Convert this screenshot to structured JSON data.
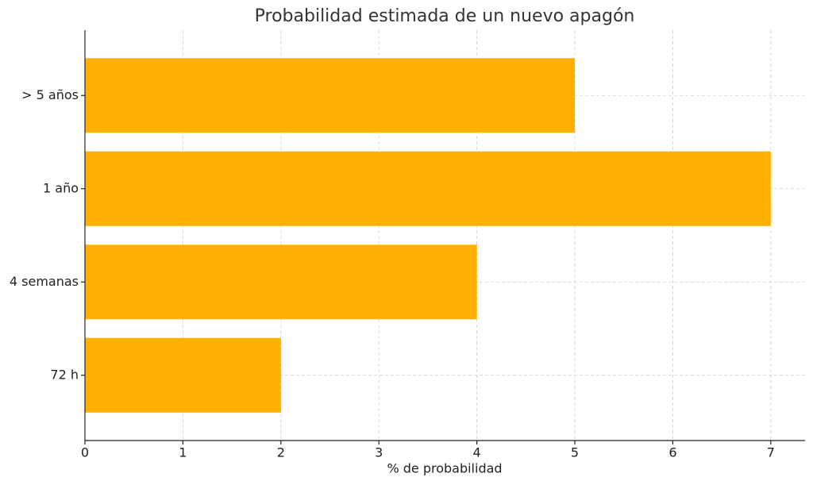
{
  "chart_data": {
    "type": "bar",
    "orientation": "horizontal",
    "title": "Probabilidad estimada de un nuevo apagón",
    "x_label": "% de probabilidad",
    "categories": [
      "72 h",
      "4 semanas",
      "1 año",
      "> 5 años"
    ],
    "values": [
      2,
      4,
      7,
      5
    ],
    "color": "#ffb000",
    "xlim": [
      0,
      7.35
    ],
    "xticks": [
      0,
      1,
      2,
      3,
      4,
      5,
      6,
      7
    ],
    "grid": true
  }
}
